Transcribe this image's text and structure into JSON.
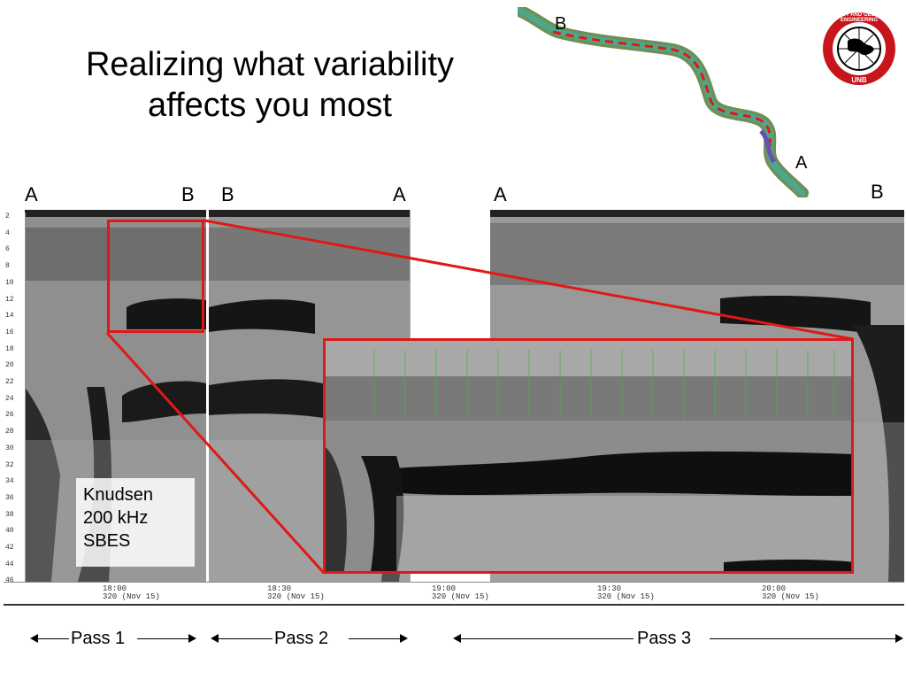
{
  "slide": {
    "title_line1": "Realizing what variability",
    "title_line2": "affects you most"
  },
  "map": {
    "label_b": "B",
    "label_a": "A"
  },
  "logo": {
    "ring_text": "GEODESY AND GEOMATICS ENGINEERING",
    "bottom_text": "UNB"
  },
  "endpoints": {
    "pass1_start": "A",
    "pass1_end": "B",
    "pass2_start": "B",
    "pass2_end": "A",
    "pass3_start": "A",
    "pass3_end": "B"
  },
  "depth_scale": [
    "2",
    "4",
    "6",
    "8",
    "10",
    "12",
    "14",
    "16",
    "18",
    "20",
    "22",
    "24",
    "26",
    "28",
    "30",
    "32",
    "34",
    "36",
    "38",
    "40",
    "42",
    "44",
    "46"
  ],
  "time_axis": [
    {
      "time": "18:00",
      "day": "320 (Nov 15)"
    },
    {
      "time": "18:30",
      "day": "320 (Nov 15)"
    },
    {
      "time": "19:00",
      "day": "320 (Nov 15)"
    },
    {
      "time": "19:30",
      "day": "320 (Nov 15)"
    },
    {
      "time": "20:00",
      "day": "320 (Nov 15)"
    }
  ],
  "instrument": {
    "line1": "Knudsen",
    "line2": "200 kHz",
    "line3": "SBES"
  },
  "passes": {
    "pass1": "Pass 1",
    "pass2": "Pass 2",
    "pass3": "Pass 3"
  },
  "colors": {
    "highlight": "#e01818",
    "echogram_bg": "#8a8a8a",
    "seabed": "#111111"
  }
}
